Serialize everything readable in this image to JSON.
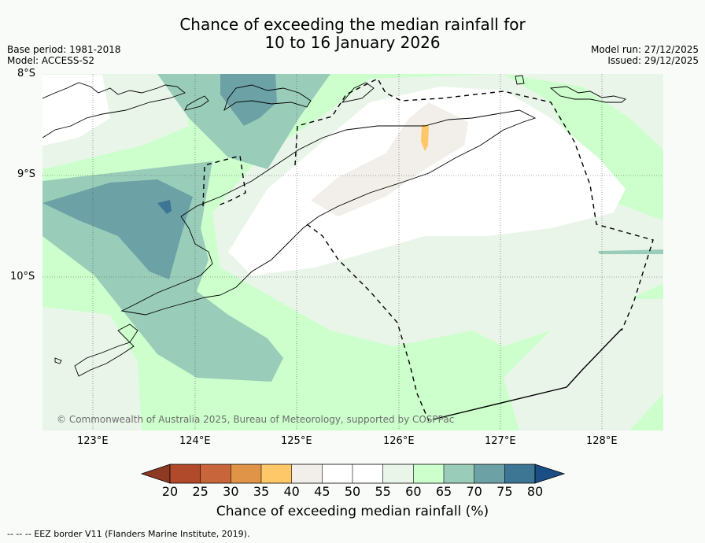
{
  "title": {
    "line1": "Chance of exceeding the median rainfall for",
    "line2": "10 to 16 January 2026"
  },
  "meta": {
    "base_period": "Base period: 1981-2018",
    "model": "Model: ACCESS-S2",
    "model_run": "Model run: 27/12/2025",
    "issued": "Issued: 29/12/2025"
  },
  "map": {
    "lat_labels": [
      "8°S",
      "9°S",
      "10°S"
    ],
    "lon_labels": [
      "123°E",
      "124°E",
      "125°E",
      "126°E",
      "127°E",
      "128°E"
    ],
    "credit": "© Commonwealth of Australia 2025, Bureau of Meteorology, supported by COSPPac"
  },
  "colorbar": {
    "ticks": [
      "20",
      "25",
      "30",
      "35",
      "40",
      "45",
      "50",
      "55",
      "60",
      "65",
      "70",
      "75",
      "80"
    ],
    "colors": [
      "#b14a2b",
      "#c9653a",
      "#e09448",
      "#fec868",
      "#f2eeea",
      "#ffffff",
      "#ffffff",
      "#eaf5ea",
      "#ccffcc",
      "#99cdb9",
      "#6ca2a6",
      "#3d7594"
    ],
    "under_color": "#8e3a22",
    "over_color": "#1c4e86",
    "label": "Chance of exceeding median rainfall (%)"
  },
  "footer": {
    "legend_symbol": "-- -- --",
    "legend_text": "EEZ border V11 (Flanders Marine Institute, 2019)."
  }
}
